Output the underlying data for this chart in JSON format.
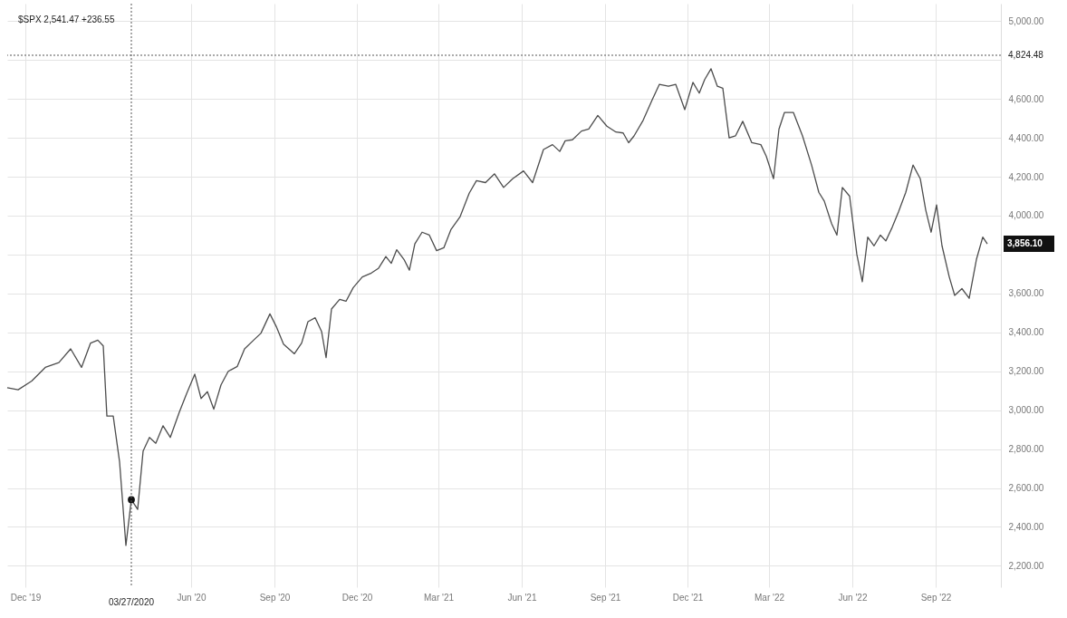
{
  "chart_data": {
    "type": "line",
    "title": "$SPX 2,541.47 +236.55",
    "x": [
      "2019-11-11",
      "2019-11-23",
      "2019-12-08",
      "2019-12-23",
      "2020-01-07",
      "2020-01-20",
      "2020-02-01",
      "2020-02-11",
      "2020-02-19",
      "2020-02-25",
      "2020-02-29",
      "2020-03-07",
      "2020-03-14",
      "2020-03-21",
      "2020-03-27",
      "2020-04-03",
      "2020-04-09",
      "2020-04-16",
      "2020-04-23",
      "2020-05-01",
      "2020-05-09",
      "2020-05-19",
      "2020-05-27",
      "2020-06-05",
      "2020-06-12",
      "2020-06-19",
      "2020-06-26",
      "2020-07-04",
      "2020-07-12",
      "2020-07-22",
      "2020-07-30",
      "2020-08-09",
      "2020-08-17",
      "2020-08-27",
      "2020-09-03",
      "2020-09-11",
      "2020-09-23",
      "2020-10-01",
      "2020-10-08",
      "2020-10-16",
      "2020-10-23",
      "2020-10-28",
      "2020-11-03",
      "2020-11-12",
      "2020-11-19",
      "2020-11-27",
      "2020-12-07",
      "2020-12-17",
      "2020-12-25",
      "2021-01-02",
      "2021-01-08",
      "2021-01-14",
      "2021-01-22",
      "2021-01-28",
      "2021-02-03",
      "2021-02-11",
      "2021-02-19",
      "2021-02-27",
      "2021-03-07",
      "2021-03-15",
      "2021-03-25",
      "2021-04-04",
      "2021-04-12",
      "2021-04-22",
      "2021-05-02",
      "2021-05-12",
      "2021-05-22",
      "2021-06-03",
      "2021-06-13",
      "2021-06-25",
      "2021-07-05",
      "2021-07-13",
      "2021-07-19",
      "2021-07-27",
      "2021-08-06",
      "2021-08-14",
      "2021-08-24",
      "2021-09-03",
      "2021-09-13",
      "2021-09-21",
      "2021-09-27",
      "2021-10-03",
      "2021-10-13",
      "2021-10-23",
      "2021-10-31",
      "2021-11-10",
      "2021-11-18",
      "2021-11-28",
      "2021-12-07",
      "2021-12-14",
      "2021-12-20",
      "2021-12-27",
      "2022-01-03",
      "2022-01-09",
      "2022-01-16",
      "2022-01-23",
      "2022-01-31",
      "2022-02-10",
      "2022-02-20",
      "2022-02-26",
      "2022-03-06",
      "2022-03-12",
      "2022-03-18",
      "2022-03-28",
      "2022-04-07",
      "2022-04-17",
      "2022-04-25",
      "2022-05-01",
      "2022-05-09",
      "2022-05-15",
      "2022-05-21",
      "2022-05-29",
      "2022-06-06",
      "2022-06-12",
      "2022-06-18",
      "2022-06-25",
      "2022-07-02",
      "2022-07-08",
      "2022-07-15",
      "2022-07-22",
      "2022-07-30",
      "2022-08-07",
      "2022-08-15",
      "2022-08-21",
      "2022-08-27",
      "2022-09-02",
      "2022-09-08",
      "2022-09-16",
      "2022-09-22",
      "2022-09-30",
      "2022-10-08",
      "2022-10-16",
      "2022-10-23",
      "2022-10-28"
    ],
    "series": [
      {
        "color": "#4d4d4d",
        "marker": "none",
        "values": [
          3115,
          3105,
          3150,
          3220,
          3245,
          3315,
          3220,
          3345,
          3360,
          3330,
          2970,
          2970,
          2735,
          2305,
          2540,
          2490,
          2790,
          2860,
          2830,
          2920,
          2860,
          2990,
          3085,
          3185,
          3060,
          3095,
          3005,
          3130,
          3200,
          3225,
          3315,
          3360,
          3395,
          3495,
          3430,
          3340,
          3290,
          3345,
          3455,
          3475,
          3405,
          3270,
          3520,
          3570,
          3560,
          3630,
          3685,
          3705,
          3730,
          3790,
          3755,
          3825,
          3775,
          3720,
          3855,
          3915,
          3900,
          3820,
          3835,
          3930,
          3995,
          4115,
          4180,
          4170,
          4215,
          4145,
          4190,
          4230,
          4170,
          4340,
          4365,
          4330,
          4385,
          4390,
          4435,
          4445,
          4515,
          4460,
          4430,
          4425,
          4375,
          4410,
          4490,
          4595,
          4675,
          4665,
          4675,
          4545,
          4685,
          4630,
          4700,
          4755,
          4665,
          4655,
          4400,
          4410,
          4485,
          4375,
          4365,
          4305,
          4190,
          4445,
          4530,
          4530,
          4410,
          4260,
          4120,
          4075,
          3960,
          3900,
          4145,
          4100,
          3800,
          3660,
          3890,
          3845,
          3900,
          3870,
          3940,
          4020,
          4120,
          4260,
          4190,
          4030,
          3915,
          4055,
          3845,
          3685,
          3590,
          3625,
          3575,
          3775,
          3890,
          3855
        ]
      },
      {
        "type": "scatter",
        "color": "#111111",
        "marker": "circle",
        "x": [
          "2020-03-27"
        ],
        "values": [
          2540
        ]
      }
    ],
    "xlim": [
      "2019-11-11",
      "2022-11-12"
    ],
    "xticks": [
      {
        "value": "2019-12-01",
        "label": "Dec '19"
      },
      {
        "value": "2020-06-01",
        "label": "Jun '20"
      },
      {
        "value": "2020-09-01",
        "label": "Sep '20"
      },
      {
        "value": "2020-12-01",
        "label": "Dec '20"
      },
      {
        "value": "2021-03-01",
        "label": "Mar '21"
      },
      {
        "value": "2021-06-01",
        "label": "Jun '21"
      },
      {
        "value": "2021-09-01",
        "label": "Sep '21"
      },
      {
        "value": "2021-12-01",
        "label": "Dec '21"
      },
      {
        "value": "2022-03-01",
        "label": "Mar '22"
      },
      {
        "value": "2022-06-01",
        "label": "Jun '22"
      },
      {
        "value": "2022-09-01",
        "label": "Sep '22"
      }
    ],
    "ylim": [
      2090,
      5090
    ],
    "yticks": [
      {
        "value": 2200,
        "label": "2,200.00"
      },
      {
        "value": 2400,
        "label": "2,400.00"
      },
      {
        "value": 2600,
        "label": "2,600.00"
      },
      {
        "value": 2800,
        "label": "2,800.00"
      },
      {
        "value": 3000,
        "label": "3,000.00"
      },
      {
        "value": 3200,
        "label": "3,200.00"
      },
      {
        "value": 3400,
        "label": "3,400.00"
      },
      {
        "value": 3600,
        "label": "3,600.00"
      },
      {
        "value": 3800,
        "label": null
      },
      {
        "value": 4000,
        "label": "4,000.00"
      },
      {
        "value": 4200,
        "label": "4,200.00"
      },
      {
        "value": 4400,
        "label": "4,400.00"
      },
      {
        "value": 4600,
        "label": "4,600.00"
      },
      {
        "value": 4800,
        "label": null
      },
      {
        "value": 5000,
        "label": "5,000.00"
      }
    ],
    "grid": true,
    "ref_lines": [
      {
        "axis": "y",
        "value": 4824.48,
        "label": "4,824.48",
        "color": "#555555",
        "line_style": "dotted"
      },
      {
        "axis": "x",
        "value": "2020-03-27",
        "label": "03/27/2020",
        "color": "#555555",
        "line_style": "dotted"
      }
    ],
    "annotations": [
      {
        "text": "3,856.10",
        "x": "2022-10-28",
        "y": 3856.1
      }
    ]
  }
}
